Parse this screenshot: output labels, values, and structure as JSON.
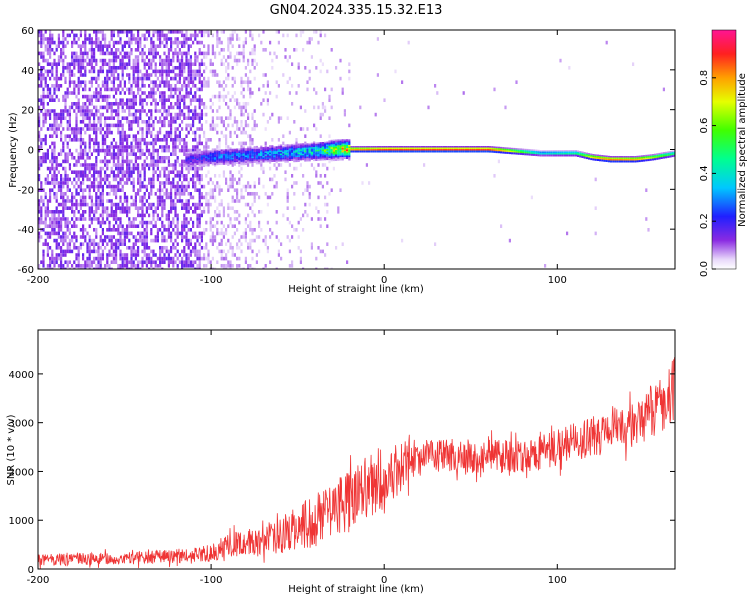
{
  "chart_data": [
    {
      "type": "heatmap",
      "title": "GN04.2024.335.15.32.E13",
      "xlabel": "Height of straight line (km)",
      "ylabel": "Frequency (Hz)",
      "xlim": [
        -200,
        168
      ],
      "ylim": [
        -60,
        60
      ],
      "x_ticks": [
        "-200",
        "-100",
        "0",
        "100"
      ],
      "y_ticks": [
        "60",
        "40",
        "20",
        "0",
        "-20",
        "-40",
        "-60"
      ],
      "grid": false,
      "colorbar": {
        "label": "Normalized spectral amplitude",
        "range": [
          0.0,
          1.0
        ],
        "ticks": [
          "0.0",
          "0.2",
          "0.4",
          "0.6",
          "0.8"
        ],
        "colormap": "rainbow (violet to red)"
      },
      "signal_track": {
        "x": [
          -115,
          -100,
          -80,
          -60,
          -40,
          -25,
          -10,
          0,
          20,
          60,
          75,
          90,
          110,
          120,
          130,
          145,
          155,
          168
        ],
        "frequency": [
          -5,
          -4,
          -3,
          -2,
          -1,
          0,
          0,
          0,
          0,
          0,
          -1,
          -2,
          -2,
          -4,
          -5,
          -5,
          -4,
          -2
        ],
        "amplitude": [
          0.2,
          0.3,
          0.35,
          0.4,
          0.5,
          0.85,
          0.9,
          0.95,
          0.95,
          0.95,
          0.7,
          0.4,
          0.5,
          0.8,
          0.9,
          0.85,
          0.7,
          0.5
        ]
      }
    },
    {
      "type": "line",
      "xlabel": "Height of straight line (km)",
      "ylabel": "SNR (10 * v/v)",
      "xlim": [
        -200,
        168
      ],
      "ylim": [
        0,
        4900
      ],
      "x_ticks": [
        "-200",
        "-100",
        "0",
        "100"
      ],
      "y_ticks": [
        "0",
        "1000",
        "2000",
        "3000",
        "4000"
      ],
      "grid": false,
      "series_color": "#ef3535",
      "trend_x": [
        -200,
        -150,
        -110,
        -100,
        -90,
        -70,
        -50,
        -40,
        -30,
        -20,
        -10,
        0,
        10,
        20,
        40,
        60,
        80,
        100,
        120,
        140,
        150,
        160,
        168
      ],
      "trend_y": [
        180,
        220,
        280,
        330,
        480,
        600,
        800,
        1000,
        1300,
        1400,
        1700,
        1900,
        2100,
        2300,
        2350,
        2300,
        2300,
        2500,
        2700,
        2900,
        3100,
        3400,
        3700
      ],
      "spread": [
        120,
        130,
        150,
        180,
        250,
        300,
        450,
        550,
        600,
        650,
        650,
        700,
        500,
        400,
        350,
        350,
        350,
        400,
        400,
        450,
        500,
        600,
        700
      ]
    }
  ]
}
